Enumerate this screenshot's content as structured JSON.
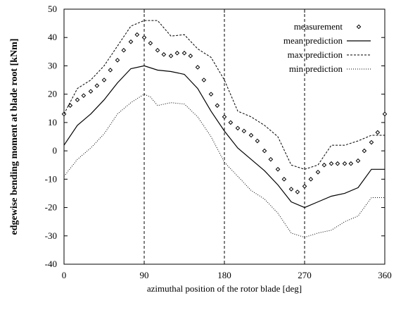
{
  "chart_data": {
    "type": "line",
    "title": "",
    "xlabel": "azimuthal position of the rotor blade [deg]",
    "ylabel": "edgewise bending moment at blade root [kNm]",
    "xlim": [
      0,
      360
    ],
    "ylim": [
      -40,
      50
    ],
    "xticks": [
      "0",
      "90",
      "180",
      "270",
      "360"
    ],
    "yticks": [
      "-40",
      "-30",
      "-20",
      "-10",
      "0",
      "10",
      "20",
      "30",
      "40",
      "50"
    ],
    "grid": "vertical dashed lines at 90, 180, 270",
    "legend_position": "top-right",
    "series": [
      {
        "name": "measurement",
        "style": "diamond markers",
        "x": [
          0,
          7,
          15,
          22,
          30,
          37,
          45,
          52,
          60,
          67,
          75,
          82,
          90,
          97,
          105,
          112,
          120,
          127,
          135,
          142,
          150,
          157,
          165,
          172,
          180,
          187,
          195,
          202,
          210,
          217,
          225,
          232,
          240,
          247,
          255,
          262,
          270,
          277,
          285,
          292,
          300,
          307,
          315,
          322,
          330,
          337,
          345,
          352,
          360
        ],
        "y": [
          13,
          16,
          18,
          19.5,
          21,
          23,
          25,
          28.5,
          32,
          35.5,
          38.5,
          41,
          40,
          38,
          35.5,
          34,
          33.5,
          34.5,
          34.5,
          33.5,
          29.5,
          25,
          20,
          16,
          12,
          10,
          8,
          7,
          5.5,
          3.5,
          0,
          -3,
          -6.5,
          -10,
          -13.5,
          -14.5,
          -12.5,
          -10,
          -7.5,
          -5,
          -4.5,
          -4.5,
          -4.5,
          -4.5,
          -3.5,
          0,
          3,
          6.5,
          13
        ]
      },
      {
        "name": "mean prediction",
        "style": "solid line",
        "x": [
          0,
          15,
          30,
          45,
          60,
          75,
          90,
          105,
          120,
          135,
          150,
          165,
          180,
          195,
          210,
          225,
          240,
          255,
          270,
          285,
          300,
          315,
          330,
          345,
          360
        ],
        "y": [
          2,
          9,
          13,
          18,
          24,
          29,
          30,
          28.5,
          28,
          27,
          22,
          14,
          7,
          1,
          -3,
          -7,
          -12,
          -18,
          -20,
          -18,
          -16,
          -15,
          -13,
          -6.5,
          -6.5
        ]
      },
      {
        "name": "max prediction",
        "style": "dashed line",
        "x": [
          0,
          15,
          30,
          45,
          60,
          75,
          90,
          105,
          120,
          135,
          150,
          165,
          180,
          195,
          210,
          225,
          240,
          255,
          270,
          285,
          300,
          315,
          330,
          345,
          360
        ],
        "y": [
          13,
          22,
          25,
          30,
          37,
          44,
          46,
          46,
          40.5,
          41,
          36,
          33,
          25,
          14,
          12,
          9,
          5,
          -5,
          -6.5,
          -5,
          2,
          2,
          3.5,
          5.5,
          5.5
        ]
      },
      {
        "name": "min prediction",
        "style": "dotted line",
        "x": [
          0,
          15,
          30,
          45,
          60,
          75,
          90,
          97,
          105,
          120,
          135,
          150,
          165,
          180,
          195,
          210,
          225,
          240,
          255,
          270,
          285,
          300,
          315,
          330,
          345,
          360
        ],
        "y": [
          -9,
          -3,
          1,
          6,
          13,
          17,
          20,
          19,
          16,
          17,
          16.5,
          12,
          5,
          -4,
          -9,
          -14,
          -17,
          -22,
          -29,
          -30.5,
          -29,
          -28,
          -25,
          -23,
          -16.5,
          -16.5
        ]
      }
    ]
  }
}
